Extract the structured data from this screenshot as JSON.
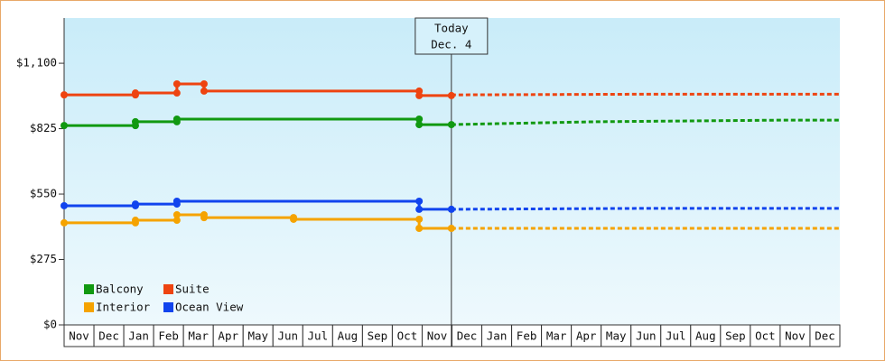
{
  "chart_data": {
    "type": "line",
    "categories": [
      "Nov",
      "Dec",
      "Jan",
      "Feb",
      "Mar",
      "Apr",
      "May",
      "Jun",
      "Jul",
      "Aug",
      "Sep",
      "Oct",
      "Nov",
      "Dec",
      "Jan",
      "Feb",
      "Mar",
      "Apr",
      "May",
      "Jun",
      "Jul",
      "Aug",
      "Sep",
      "Oct",
      "Nov",
      "Dec"
    ],
    "xlim": [
      0,
      26
    ],
    "ylim": [
      0,
      1290
    ],
    "yticks": [
      0,
      275,
      550,
      825,
      1100
    ],
    "ytick_labels": [
      "$0",
      "$275",
      "$550",
      "$825",
      "$1,100"
    ],
    "today": {
      "lines": [
        "Today",
        "Dec. 4"
      ],
      "x": 12.98
    },
    "series": [
      {
        "name": "Balcony",
        "color": "#119911",
        "x": [
          0,
          2.39,
          2.39,
          3.78,
          3.78,
          11.9,
          11.9,
          12.98
        ],
        "values": [
          838,
          838,
          854,
          854,
          865,
          865,
          842,
          842
        ],
        "forecast_x": [
          12.98,
          14.5,
          17.8,
          24.2,
          26
        ],
        "forecast_values": [
          842,
          846,
          854,
          861,
          861
        ]
      },
      {
        "name": "Suite",
        "color": "#ee4411",
        "x": [
          0,
          2.39,
          2.39,
          3.78,
          3.78,
          4.69,
          4.69,
          11.9,
          11.9,
          12.98
        ],
        "values": [
          967,
          967,
          975,
          975,
          1013,
          1013,
          983,
          983,
          964,
          964
        ],
        "forecast_x": [
          12.98,
          19.6,
          26
        ],
        "forecast_values": [
          967,
          970,
          970
        ]
      },
      {
        "name": "Interior",
        "color": "#f5a300",
        "x": [
          0,
          2.39,
          2.39,
          3.78,
          3.78,
          4.69,
          4.69,
          7.69,
          7.69,
          11.9,
          11.9,
          12.98
        ],
        "values": [
          429,
          429,
          440,
          440,
          463,
          463,
          451,
          451,
          444,
          444,
          406,
          406
        ],
        "forecast_x": [
          12.98,
          26
        ],
        "forecast_values": [
          406,
          406
        ]
      },
      {
        "name": "Ocean View",
        "color": "#1144ee",
        "x": [
          0,
          2.39,
          2.39,
          3.78,
          3.78,
          11.9,
          11.9,
          12.98
        ],
        "values": [
          501,
          501,
          508,
          508,
          520,
          520,
          486,
          486
        ],
        "forecast_x": [
          12.98,
          19.6,
          26
        ],
        "forecast_values": [
          486,
          490,
          490
        ]
      }
    ]
  }
}
